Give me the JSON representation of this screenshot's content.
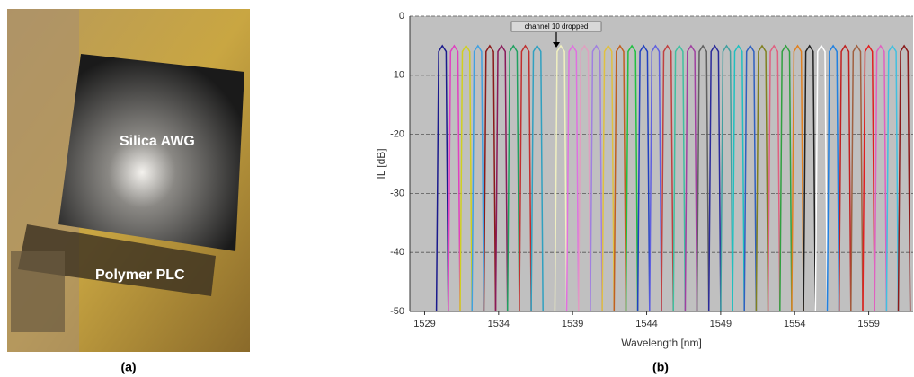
{
  "figure": {
    "panel_a": {
      "caption": "(a)",
      "labels": [
        "Silica AWG",
        "Polymer PLC"
      ]
    },
    "panel_b": {
      "caption": "(b)"
    }
  },
  "chart_data": {
    "type": "line",
    "xlabel": "Wavelength [nm]",
    "ylabel": "IL [dB]",
    "annotation": "channel 10 dropped",
    "xlim": [
      1528,
      1562
    ],
    "ylim": [
      -50,
      0
    ],
    "xticks": [
      1529,
      1534,
      1539,
      1544,
      1549,
      1554,
      1559
    ],
    "yticks": [
      0,
      -10,
      -20,
      -30,
      -40,
      -50
    ],
    "grid": true,
    "series": [
      {
        "color": "#1a1a8c",
        "x": [
          1529.8,
          1529.95,
          1530.2,
          1530.45,
          1530.6
        ],
        "values": [
          -50,
          -6,
          -5,
          -6,
          -50
        ]
      },
      {
        "color": "#e040c0",
        "x": [
          1530.6,
          1530.75,
          1531.0,
          1531.25,
          1531.4
        ],
        "values": [
          -50,
          -6,
          -5,
          -6,
          -50
        ]
      },
      {
        "color": "#d0d020",
        "x": [
          1531.4,
          1531.55,
          1531.8,
          1532.05,
          1532.2
        ],
        "values": [
          -50,
          -6,
          -5,
          -6,
          -50
        ]
      },
      {
        "color": "#40a0e0",
        "x": [
          1532.2,
          1532.35,
          1532.6,
          1532.85,
          1533.0
        ],
        "values": [
          -50,
          -6,
          -5,
          -6,
          -50
        ]
      },
      {
        "color": "#8a1a1a",
        "x": [
          1533.0,
          1533.15,
          1533.4,
          1533.65,
          1533.8
        ],
        "values": [
          -50,
          -6,
          -5,
          -6,
          -50
        ]
      },
      {
        "color": "#8a1a5a",
        "x": [
          1533.8,
          1533.95,
          1534.2,
          1534.45,
          1534.6
        ],
        "values": [
          -50,
          -6,
          -5,
          -6,
          -50
        ]
      },
      {
        "color": "#20a060",
        "x": [
          1534.6,
          1534.75,
          1535.0,
          1535.25,
          1535.4
        ],
        "values": [
          -50,
          -6,
          -5,
          -6,
          -50
        ]
      },
      {
        "color": "#c03030",
        "x": [
          1535.4,
          1535.55,
          1535.8,
          1536.05,
          1536.2
        ],
        "values": [
          -50,
          -6,
          -5,
          -6,
          -50
        ]
      },
      {
        "color": "#30a0c0",
        "x": [
          1536.2,
          1536.35,
          1536.6,
          1536.85,
          1537.0
        ],
        "values": [
          -50,
          -6,
          -5,
          -6,
          -50
        ]
      },
      {
        "color": "#f0f0c0",
        "x": [
          1537.8,
          1537.95,
          1538.2,
          1538.45,
          1538.6
        ],
        "values": [
          -50,
          -6,
          -5,
          -6,
          -50
        ]
      },
      {
        "color": "#e070e0",
        "x": [
          1538.6,
          1538.75,
          1539.0,
          1539.25,
          1539.4
        ],
        "values": [
          -50,
          -6,
          -5,
          -6,
          -50
        ]
      },
      {
        "color": "#e0a0c0",
        "x": [
          1539.4,
          1539.55,
          1539.8,
          1540.05,
          1540.2
        ],
        "values": [
          -50,
          -6,
          -5,
          -6,
          -50
        ]
      },
      {
        "color": "#a080e0",
        "x": [
          1540.2,
          1540.35,
          1540.6,
          1540.85,
          1541.0
        ],
        "values": [
          -50,
          -6,
          -5,
          -6,
          -50
        ]
      },
      {
        "color": "#e0c040",
        "x": [
          1541.0,
          1541.15,
          1541.4,
          1541.65,
          1541.8
        ],
        "values": [
          -50,
          -6,
          -5,
          -6,
          -50
        ]
      },
      {
        "color": "#c06020",
        "x": [
          1541.8,
          1541.95,
          1542.2,
          1542.45,
          1542.6
        ],
        "values": [
          -50,
          -6,
          -5,
          -6,
          -50
        ]
      },
      {
        "color": "#20c040",
        "x": [
          1542.6,
          1542.75,
          1543.0,
          1543.25,
          1543.4
        ],
        "values": [
          -50,
          -6,
          -5,
          -6,
          -50
        ]
      },
      {
        "color": "#2040c0",
        "x": [
          1543.4,
          1543.55,
          1543.8,
          1544.05,
          1544.2
        ],
        "values": [
          -50,
          -6,
          -5,
          -6,
          -50
        ]
      },
      {
        "color": "#6060e0",
        "x": [
          1544.2,
          1544.35,
          1544.6,
          1544.85,
          1545.0
        ],
        "values": [
          -50,
          -6,
          -5,
          -6,
          -50
        ]
      },
      {
        "color": "#c04040",
        "x": [
          1545.0,
          1545.15,
          1545.4,
          1545.65,
          1545.8
        ],
        "values": [
          -50,
          -6,
          -5,
          -6,
          -50
        ]
      },
      {
        "color": "#40c0a0",
        "x": [
          1545.8,
          1545.95,
          1546.2,
          1546.45,
          1546.6
        ],
        "values": [
          -50,
          -6,
          -5,
          -6,
          -50
        ]
      },
      {
        "color": "#a040a0",
        "x": [
          1546.6,
          1546.75,
          1547.0,
          1547.25,
          1547.4
        ],
        "values": [
          -50,
          -6,
          -5,
          -6,
          -50
        ]
      },
      {
        "color": "#606060",
        "x": [
          1547.4,
          1547.55,
          1547.8,
          1548.05,
          1548.2
        ],
        "values": [
          -50,
          -6,
          -5,
          -6,
          -50
        ]
      },
      {
        "color": "#2a2a9a",
        "x": [
          1548.2,
          1548.35,
          1548.6,
          1548.85,
          1549.0
        ],
        "values": [
          -50,
          -6,
          -5,
          -6,
          -50
        ]
      },
      {
        "color": "#40a0a0",
        "x": [
          1549.0,
          1549.15,
          1549.4,
          1549.65,
          1549.8
        ],
        "values": [
          -50,
          -6,
          -5,
          -6,
          -50
        ]
      },
      {
        "color": "#20c0c0",
        "x": [
          1549.8,
          1549.95,
          1550.2,
          1550.45,
          1550.6
        ],
        "values": [
          -50,
          -6,
          -5,
          -6,
          -50
        ]
      },
      {
        "color": "#3060c0",
        "x": [
          1550.6,
          1550.75,
          1551.0,
          1551.25,
          1551.4
        ],
        "values": [
          -50,
          -6,
          -5,
          -6,
          -50
        ]
      },
      {
        "color": "#808020",
        "x": [
          1551.4,
          1551.55,
          1551.8,
          1552.05,
          1552.2
        ],
        "values": [
          -50,
          -6,
          -5,
          -6,
          -50
        ]
      },
      {
        "color": "#e06080",
        "x": [
          1552.2,
          1552.35,
          1552.6,
          1552.85,
          1553.0
        ],
        "values": [
          -50,
          -6,
          -5,
          -6,
          -50
        ]
      },
      {
        "color": "#30a040",
        "x": [
          1553.0,
          1553.15,
          1553.4,
          1553.65,
          1553.8
        ],
        "values": [
          -50,
          -6,
          -5,
          -6,
          -50
        ]
      },
      {
        "color": "#e08020",
        "x": [
          1553.8,
          1553.95,
          1554.2,
          1554.45,
          1554.6
        ],
        "values": [
          -50,
          -6,
          -5,
          -6,
          -50
        ]
      },
      {
        "color": "#202020",
        "x": [
          1554.6,
          1554.75,
          1555.0,
          1555.25,
          1555.4
        ],
        "values": [
          -50,
          -6,
          -5,
          -6,
          -50
        ]
      },
      {
        "color": "#ffffff",
        "x": [
          1555.4,
          1555.55,
          1555.8,
          1556.05,
          1556.2
        ],
        "values": [
          -50,
          -6,
          -5,
          -6,
          -50
        ]
      },
      {
        "color": "#2080e0",
        "x": [
          1556.2,
          1556.35,
          1556.6,
          1556.85,
          1557.0
        ],
        "values": [
          -50,
          -6,
          -5,
          -6,
          -50
        ]
      },
      {
        "color": "#c02020",
        "x": [
          1557.0,
          1557.15,
          1557.4,
          1557.65,
          1557.8
        ],
        "values": [
          -50,
          -6,
          -5,
          -6,
          -50
        ]
      },
      {
        "color": "#a06040",
        "x": [
          1557.8,
          1557.95,
          1558.2,
          1558.45,
          1558.6
        ],
        "values": [
          -50,
          -6,
          -5,
          -6,
          -50
        ]
      },
      {
        "color": "#e02020",
        "x": [
          1558.6,
          1558.75,
          1559.0,
          1559.25,
          1559.4
        ],
        "values": [
          -50,
          -6,
          -5,
          -6,
          -50
        ]
      },
      {
        "color": "#e060c0",
        "x": [
          1559.4,
          1559.55,
          1559.8,
          1560.05,
          1560.2
        ],
        "values": [
          -50,
          -6,
          -5,
          -6,
          -50
        ]
      },
      {
        "color": "#40c0e0",
        "x": [
          1560.2,
          1560.35,
          1560.6,
          1560.85,
          1561.0
        ],
        "values": [
          -50,
          -6,
          -5,
          -6,
          -50
        ]
      },
      {
        "color": "#8a1a1a",
        "x": [
          1561.0,
          1561.15,
          1561.4,
          1561.65,
          1561.8
        ],
        "values": [
          -50,
          -6,
          -5,
          -6,
          -50
        ]
      }
    ]
  }
}
